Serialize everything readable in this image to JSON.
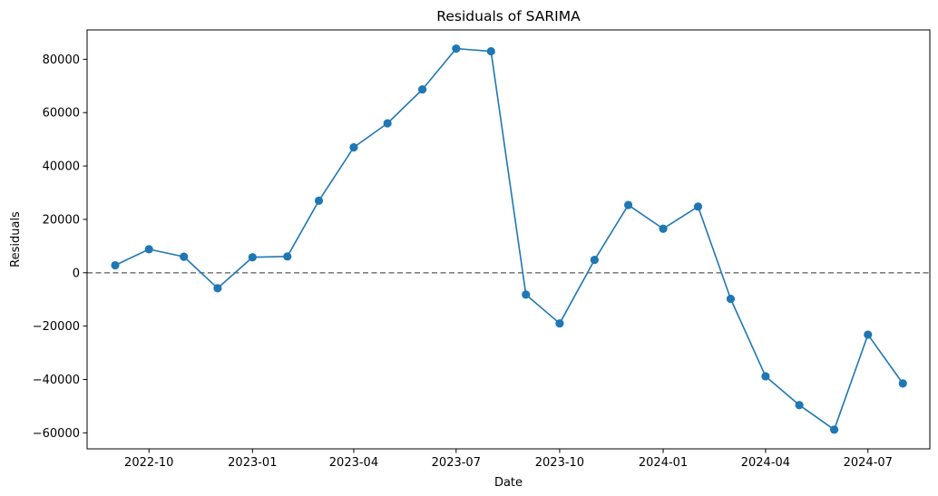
{
  "chart_data": {
    "type": "line",
    "title": "Residuals of SARIMA",
    "xlabel": "Date",
    "ylabel": "Residuals",
    "x": [
      "2022-09-01",
      "2022-10-01",
      "2022-11-01",
      "2022-12-01",
      "2023-01-01",
      "2023-02-01",
      "2023-03-01",
      "2023-04-01",
      "2023-05-01",
      "2023-06-01",
      "2023-07-01",
      "2023-08-01",
      "2023-09-01",
      "2023-10-01",
      "2023-11-01",
      "2023-12-01",
      "2024-01-01",
      "2024-02-01",
      "2024-03-01",
      "2024-04-01",
      "2024-05-01",
      "2024-06-01",
      "2024-07-01",
      "2024-08-01"
    ],
    "series": [
      {
        "values": [
          2800,
          8800,
          6000,
          -5800,
          5800,
          6100,
          27000,
          47000,
          56000,
          68700,
          84000,
          83000,
          -8200,
          -19000,
          4800,
          25400,
          16500,
          24800,
          -9800,
          -38800,
          -49600,
          -58800,
          -23200,
          -41500
        ],
        "color": "#1f77b4",
        "marker": "circle"
      }
    ],
    "reference_line": {
      "y": 0,
      "style": "dashed",
      "color": "#808080"
    },
    "xticks": [
      {
        "date": "2022-10-01",
        "label": "2022-10"
      },
      {
        "date": "2023-01-01",
        "label": "2023-01"
      },
      {
        "date": "2023-04-01",
        "label": "2023-04"
      },
      {
        "date": "2023-07-01",
        "label": "2023-07"
      },
      {
        "date": "2023-10-01",
        "label": "2023-10"
      },
      {
        "date": "2024-01-01",
        "label": "2024-01"
      },
      {
        "date": "2024-04-01",
        "label": "2024-04"
      },
      {
        "date": "2024-07-01",
        "label": "2024-07"
      }
    ],
    "yticks": [
      -60000,
      -40000,
      -20000,
      0,
      20000,
      40000,
      60000,
      80000
    ],
    "ytick_labels": [
      "−60000",
      "−40000",
      "−20000",
      "0",
      "20000",
      "40000",
      "60000",
      "80000"
    ],
    "xlim": [
      "2022-08-07",
      "2024-08-25"
    ],
    "ylim": [
      -66000,
      91000
    ],
    "grid": false,
    "legend": "none"
  }
}
